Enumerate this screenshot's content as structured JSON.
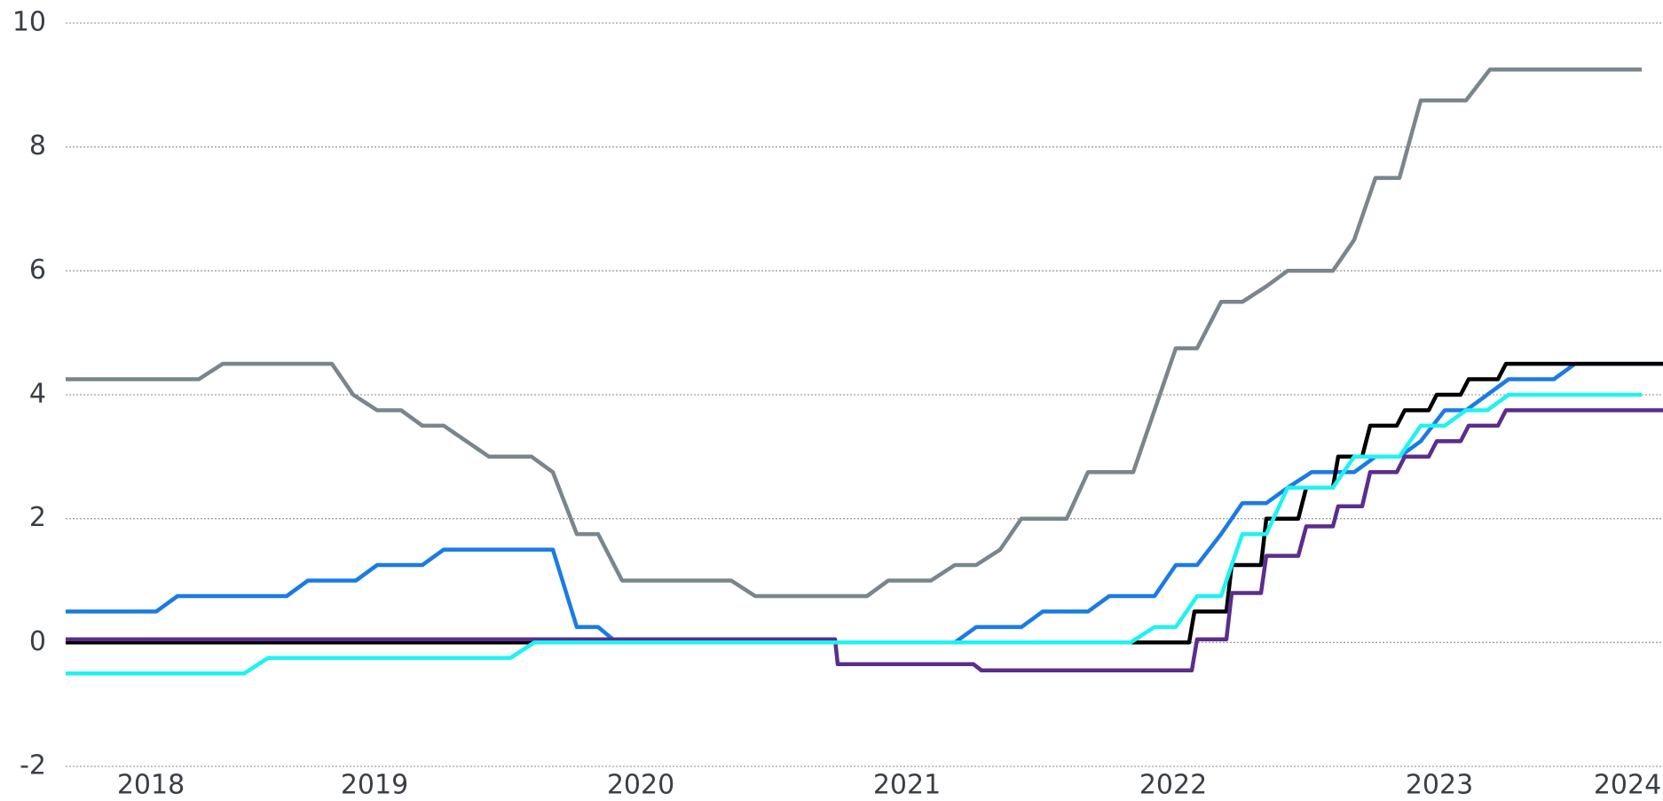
{
  "chart_data": {
    "type": "line",
    "xlim": [
      2017.84,
      2023.84
    ],
    "xticks": [
      2018,
      2019,
      2020,
      2021,
      2022,
      2023,
      2024
    ],
    "ylim": [
      -2,
      10
    ],
    "yticks": [
      -2,
      0,
      2,
      4,
      6,
      8,
      10
    ],
    "grid": true,
    "series": [
      {
        "color": "#7a858c",
        "x": [
          2017.84,
          2018.34,
          2018.43,
          2018.84,
          2018.92,
          2019.01,
          2019.1,
          2019.18,
          2019.26,
          2019.43,
          2019.59,
          2019.67,
          2019.76,
          2019.84,
          2019.93,
          2020.34,
          2020.43,
          2020.85,
          2020.93,
          2021.09,
          2021.18,
          2021.26,
          2021.35,
          2021.43,
          2021.6,
          2021.68,
          2021.85,
          2021.93,
          2022.01,
          2022.09,
          2022.18,
          2022.26,
          2022.35,
          2022.43,
          2022.6,
          2022.68,
          2022.76,
          2022.85,
          2022.93,
          2023.1,
          2023.19,
          2023.76
        ],
        "values": [
          4.25,
          4.25,
          4.5,
          4.5,
          4.0,
          3.75,
          3.75,
          3.5,
          3.5,
          3.0,
          3.0,
          2.75,
          1.75,
          1.75,
          1.0,
          1.0,
          0.75,
          0.75,
          1.0,
          1.0,
          1.25,
          1.25,
          1.5,
          2.0,
          2.0,
          2.75,
          2.75,
          3.75,
          4.75,
          4.75,
          5.5,
          5.5,
          5.75,
          6.0,
          6.0,
          6.5,
          7.5,
          7.5,
          8.75,
          8.75,
          9.25,
          9.25
        ]
      },
      {
        "color": "#1a7be6",
        "x": [
          2017.84,
          2018.18,
          2018.26,
          2018.67,
          2018.75,
          2018.93,
          2019.01,
          2019.18,
          2019.26,
          2019.67,
          2019.76,
          2019.84,
          2019.91,
          2021.18,
          2021.26,
          2021.43,
          2021.51,
          2021.68,
          2021.76,
          2021.93,
          2022.01,
          2022.09,
          2022.18,
          2022.26,
          2022.35,
          2022.43,
          2022.52,
          2022.68,
          2022.76,
          2022.85,
          2022.93,
          2023.02,
          2023.1,
          2023.26,
          2023.43,
          2023.51,
          2023.84
        ],
        "values": [
          0.5,
          0.5,
          0.75,
          0.75,
          1.0,
          1.0,
          1.25,
          1.25,
          1.5,
          1.5,
          0.25,
          0.25,
          0,
          0,
          0.25,
          0.25,
          0.5,
          0.5,
          0.75,
          0.75,
          1.25,
          1.25,
          1.75,
          2.25,
          2.25,
          2.5,
          2.75,
          2.75,
          3.0,
          3.0,
          3.25,
          3.75,
          3.75,
          4.25,
          4.25,
          4.5,
          4.5
        ]
      },
      {
        "color": "#000000",
        "x": [
          2017.84,
          2022.06,
          2022.08,
          2022.2,
          2022.22,
          2022.33,
          2022.35,
          2022.47,
          2022.5,
          2022.6,
          2022.62,
          2022.71,
          2022.74,
          2022.84,
          2022.87,
          2022.96,
          2022.99,
          2023.08,
          2023.11,
          2023.22,
          2023.25,
          2023.84
        ],
        "values": [
          0,
          0,
          0.5,
          0.5,
          1.25,
          1.25,
          2.0,
          2.0,
          2.5,
          2.5,
          3.0,
          3.0,
          3.5,
          3.5,
          3.75,
          3.75,
          4.0,
          4.0,
          4.25,
          4.25,
          4.5,
          4.5
        ]
      },
      {
        "color": "#5b2d8c",
        "x": [
          2017.84,
          2020.73,
          2020.74,
          2021.25,
          2021.28,
          2022.07,
          2022.09,
          2022.2,
          2022.22,
          2022.33,
          2022.35,
          2022.47,
          2022.5,
          2022.6,
          2022.62,
          2022.71,
          2022.74,
          2022.84,
          2022.87,
          2022.96,
          2022.99,
          2023.08,
          2023.11,
          2023.22,
          2023.25,
          2023.84
        ],
        "values": [
          0.05,
          0.05,
          -0.35,
          -0.35,
          -0.45,
          -0.45,
          0.05,
          0.05,
          0.8,
          0.8,
          1.4,
          1.4,
          1.875,
          1.875,
          2.2,
          2.2,
          2.75,
          2.75,
          3.0,
          3.0,
          3.25,
          3.25,
          3.5,
          3.5,
          3.75,
          3.75
        ]
      },
      {
        "color": "#1ff2f2",
        "x": [
          2017.84,
          2018.51,
          2018.6,
          2019.51,
          2019.6,
          2021.84,
          2021.93,
          2022.01,
          2022.09,
          2022.18,
          2022.26,
          2022.35,
          2022.43,
          2022.6,
          2022.68,
          2022.85,
          2022.93,
          2023.02,
          2023.1,
          2023.18,
          2023.26,
          2023.76
        ],
        "values": [
          -0.5,
          -0.5,
          -0.25,
          -0.25,
          0,
          0,
          0.25,
          0.25,
          0.75,
          0.75,
          1.75,
          1.75,
          2.5,
          2.5,
          3.0,
          3.0,
          3.5,
          3.5,
          3.75,
          3.75,
          4.0,
          4.0
        ]
      }
    ]
  }
}
